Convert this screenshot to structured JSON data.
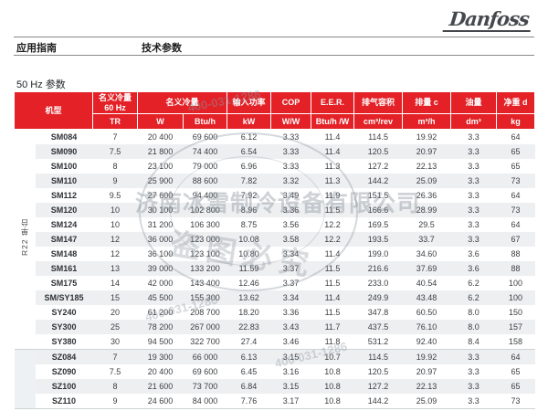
{
  "brand": {
    "logo_text": "Danfoss"
  },
  "nav": {
    "left": "应用指南",
    "right": "技术参数"
  },
  "section_title": "50 Hz 参数",
  "colors": {
    "header_red": "#e32127",
    "row_stripe": "#edeff1",
    "group_band2": "#eef1f3",
    "rule_gray": "#85888b"
  },
  "table": {
    "header": {
      "model": "机型",
      "capacity60_line1": "名义冷量",
      "capacity60_line2": "60 Hz",
      "capacity": "名义冷量",
      "power": "输入功率",
      "cop": "COP",
      "eer": "E.E.R.",
      "displacement": "排气容积",
      "swept": "排量 c",
      "oil": "油量",
      "weight": "净重 d"
    },
    "units": {
      "tr": "TR",
      "w": "W",
      "btuh": "Btu/h",
      "kw": "kW",
      "ww": "W/W",
      "btuhw": "Btu/h /W",
      "cm3rev": "cm³/rev",
      "m3h": "m³/h",
      "dm3": "dm³",
      "kg": "kg"
    },
    "groups": [
      {
        "label": "R22 单台",
        "rows": [
          [
            "SM084",
            "7",
            "20 400",
            "69 600",
            "6.12",
            "3.33",
            "11.4",
            "114.5",
            "19.92",
            "3.3",
            "64"
          ],
          [
            "SM090",
            "7.5",
            "21 800",
            "74 400",
            "6.54",
            "3.33",
            "11.4",
            "120.5",
            "20.97",
            "3.3",
            "65"
          ],
          [
            "SM100",
            "8",
            "23 100",
            "79 000",
            "6.96",
            "3.33",
            "11.3",
            "127.2",
            "22.13",
            "3.3",
            "65"
          ],
          [
            "SM110",
            "9",
            "25 900",
            "88 600",
            "7.82",
            "3.32",
            "11.3",
            "144.2",
            "25.09",
            "3.3",
            "73"
          ],
          [
            "SM112",
            "9.5",
            "27 600",
            "94 400",
            "7.92",
            "3.49",
            "11.9",
            "151.5",
            "26.36",
            "3.3",
            "64"
          ],
          [
            "SM120",
            "10",
            "30 100",
            "102 800",
            "8.96",
            "3.36",
            "11.5",
            "166.6",
            "28.99",
            "3.3",
            "73"
          ],
          [
            "SM124",
            "10",
            "31 200",
            "106 300",
            "8.75",
            "3.56",
            "12.2",
            "169.5",
            "29.5",
            "3.3",
            "64"
          ],
          [
            "SM147",
            "12",
            "36 000",
            "123 000",
            "10.08",
            "3.58",
            "12.2",
            "193.5",
            "33.7",
            "3.3",
            "67"
          ],
          [
            "SM148",
            "12",
            "36 100",
            "123 100",
            "10.80",
            "3.34",
            "11.4",
            "199.0",
            "34.60",
            "3.6",
            "88"
          ],
          [
            "SM161",
            "13",
            "39 000",
            "133 200",
            "11.59",
            "3.37",
            "11.5",
            "216.6",
            "37.69",
            "3.6",
            "88"
          ],
          [
            "SM175",
            "14",
            "42 000",
            "143 400",
            "12.46",
            "3.37",
            "11.5",
            "233.0",
            "40.54",
            "6.2",
            "100"
          ],
          [
            "SM/SY185",
            "15",
            "45 500",
            "155 300",
            "13.62",
            "3.34",
            "11.4",
            "249.9",
            "43.48",
            "6.2",
            "100"
          ],
          [
            "SY240",
            "20",
            "61 200",
            "208 700",
            "18.20",
            "3.36",
            "11.5",
            "347.8",
            "60.50",
            "8.0",
            "150"
          ],
          [
            "SY300",
            "25",
            "78 200",
            "267 000",
            "22.83",
            "3.43",
            "11.7",
            "437.5",
            "76.10",
            "8.0",
            "157"
          ],
          [
            "SY380",
            "30",
            "94 500",
            "322 700",
            "27.4",
            "3.46",
            "11.8",
            "531.2",
            "92.40",
            "8.4",
            "158"
          ]
        ]
      },
      {
        "label": "",
        "rows": [
          [
            "SZ084",
            "7",
            "19 300",
            "66 000",
            "6.13",
            "3.15",
            "10.7",
            "114.5",
            "19.92",
            "3.3",
            "64"
          ],
          [
            "SZ090",
            "7.5",
            "20 400",
            "69 600",
            "6.45",
            "3.16",
            "10.8",
            "120.5",
            "20.97",
            "3.3",
            "65"
          ],
          [
            "SZ100",
            "8",
            "21 600",
            "73 700",
            "6.84",
            "3.15",
            "10.8",
            "127.2",
            "22.13",
            "3.3",
            "65"
          ],
          [
            "SZ110",
            "9",
            "24 600",
            "84 000",
            "7.76",
            "3.17",
            "10.8",
            "144.2",
            "25.09",
            "3.3",
            "73"
          ]
        ]
      }
    ]
  },
  "watermark": {
    "company": "济南冰雪制冷设备有限公司",
    "notice": "盗图必究",
    "phone": "400-031-1286"
  }
}
